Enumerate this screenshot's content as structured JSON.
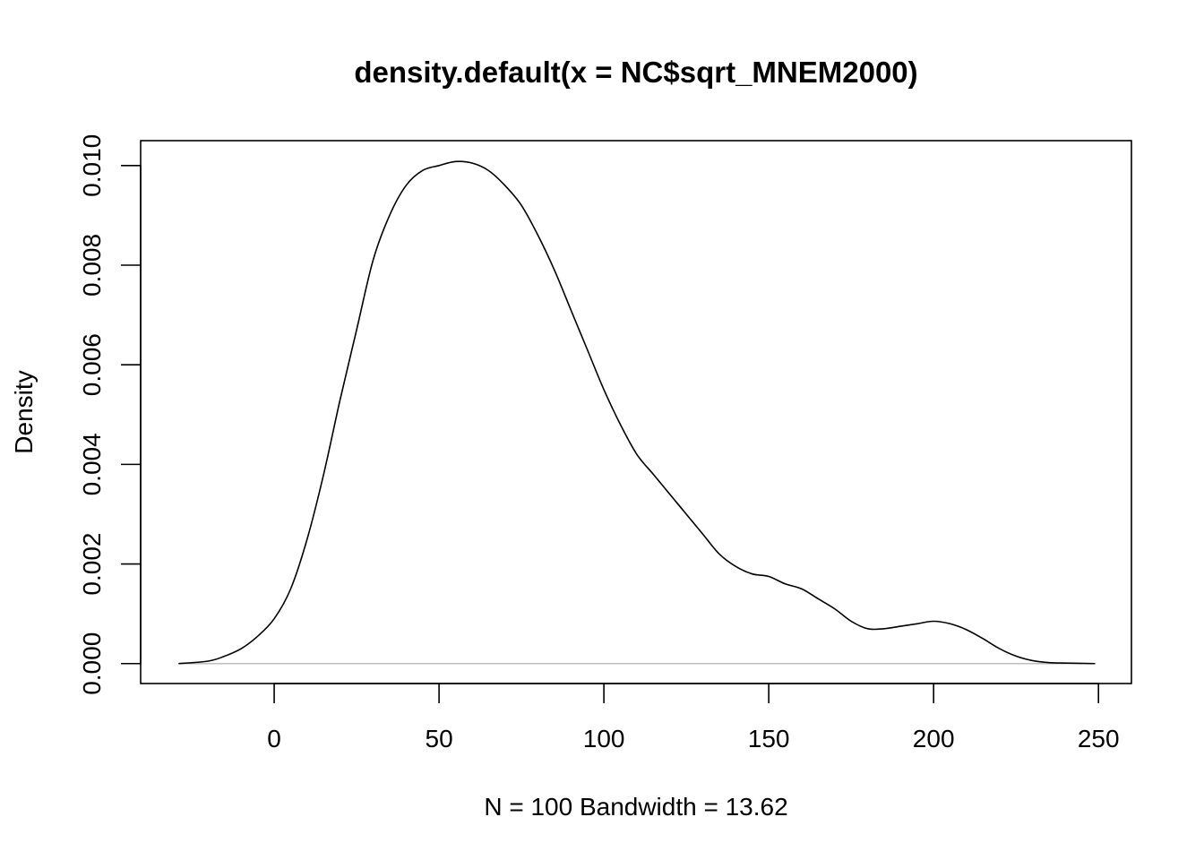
{
  "chart_data": {
    "type": "line",
    "title": "density.default(x = NC$sqrt_MNEM2000)",
    "xlabel": "N = 100   Bandwidth = 13.62",
    "ylabel": "Density",
    "xlim": [
      -40.5,
      260
    ],
    "ylim": [
      -0.0004,
      0.0105
    ],
    "x_ticks": [
      0,
      50,
      100,
      150,
      200,
      250
    ],
    "x_tick_labels": [
      "0",
      "50",
      "100",
      "150",
      "200",
      "250"
    ],
    "y_ticks": [
      0.0,
      0.002,
      0.004,
      0.006,
      0.008,
      0.01
    ],
    "y_tick_labels": [
      "0.000",
      "0.002",
      "0.004",
      "0.006",
      "0.008",
      "0.010"
    ],
    "baseline": 0,
    "colors": {
      "line": "#000000",
      "baseline": "#bebebe",
      "box": "#000000"
    },
    "series": [
      {
        "x": [
          -29,
          -20,
          -15,
          -10,
          -5,
          0,
          5,
          10,
          15,
          20,
          25,
          30,
          35,
          40,
          45,
          50,
          55,
          60,
          65,
          70,
          75,
          80,
          85,
          90,
          95,
          100,
          105,
          110,
          115,
          120,
          125,
          130,
          135,
          140,
          145,
          150,
          155,
          160,
          165,
          170,
          175,
          180,
          185,
          190,
          195,
          200,
          205,
          210,
          215,
          220,
          225,
          230,
          235,
          240,
          249
        ],
        "y": [
          0.0,
          5e-05,
          0.00015,
          0.0003,
          0.00055,
          0.0009,
          0.0015,
          0.0025,
          0.0038,
          0.0053,
          0.0067,
          0.0081,
          0.009,
          0.0096,
          0.0099,
          0.01,
          0.01008,
          0.01005,
          0.0099,
          0.0096,
          0.0092,
          0.0086,
          0.0079,
          0.0071,
          0.0063,
          0.0055,
          0.0048,
          0.0042,
          0.0038,
          0.0034,
          0.003,
          0.0026,
          0.0022,
          0.00195,
          0.0018,
          0.00175,
          0.0016,
          0.0015,
          0.0013,
          0.0011,
          0.00085,
          0.0007,
          0.0007,
          0.00075,
          0.0008,
          0.00085,
          0.0008,
          0.00068,
          0.0005,
          0.0003,
          0.00015,
          6e-05,
          2e-05,
          1e-05,
          0.0
        ]
      }
    ]
  }
}
